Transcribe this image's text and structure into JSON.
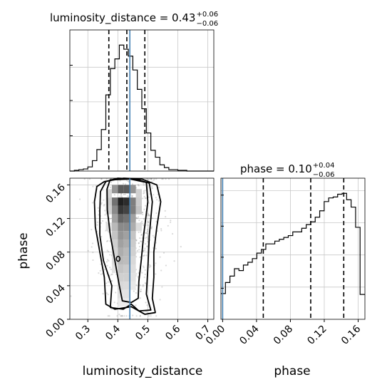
{
  "chart_data": [
    {
      "panel": "luminosity_distance-marginal",
      "type": "histogram",
      "title_prefix": "luminosity_distance = 0.43",
      "title_plus": "+0.06",
      "title_minus": "−0.06",
      "xlim": [
        0.24,
        0.72
      ],
      "truth": 0.44,
      "quantiles": [
        0.37,
        0.43,
        0.49
      ],
      "bin_edges": [
        0.24,
        0.255,
        0.27,
        0.285,
        0.3,
        0.315,
        0.33,
        0.345,
        0.36,
        0.375,
        0.39,
        0.405,
        0.42,
        0.435,
        0.45,
        0.465,
        0.48,
        0.495,
        0.51,
        0.525,
        0.54,
        0.555,
        0.57,
        0.585,
        0.6,
        0.615,
        0.63,
        0.645,
        0.66,
        0.675,
        0.69,
        0.705,
        0.72
      ],
      "counts": [
        0,
        1,
        2,
        3,
        6,
        15,
        31,
        60,
        110,
        148,
        162,
        182,
        176,
        166,
        146,
        118,
        90,
        55,
        30,
        20,
        9,
        5,
        2,
        2,
        1,
        1,
        0,
        0,
        0,
        0,
        0,
        0
      ],
      "grid": true
    },
    {
      "panel": "phase-marginal",
      "type": "histogram",
      "title_prefix": "phase = 0.10",
      "title_plus": "+0.04",
      "title_minus": "−0.06",
      "xlim": [
        -0.002,
        0.168
      ],
      "truth": 0.0,
      "quantiles": [
        0.048,
        0.104,
        0.143
      ],
      "bin_edges": [
        -0.002,
        0.0033,
        0.0086,
        0.0139,
        0.0192,
        0.0245,
        0.0298,
        0.0351,
        0.0404,
        0.0457,
        0.051,
        0.0563,
        0.0616,
        0.0669,
        0.0722,
        0.0775,
        0.0828,
        0.0881,
        0.0934,
        0.0987,
        0.104,
        0.1093,
        0.1146,
        0.1199,
        0.1252,
        0.1305,
        0.1358,
        0.1411,
        0.1464,
        0.1517,
        0.157,
        0.1623,
        0.168
      ],
      "counts": [
        28,
        40,
        47,
        55,
        53,
        59,
        62,
        66,
        72,
        76,
        82,
        82,
        85,
        87,
        89,
        91,
        95,
        95,
        99,
        103,
        106,
        111,
        118,
        128,
        132,
        133,
        136,
        137,
        130,
        122,
        100,
        27
      ],
      "grid": true
    },
    {
      "panel": "joint",
      "type": "2d-histogram-contour",
      "xlabel": "luminosity_distance",
      "ylabel": "phase",
      "xlim": [
        0.24,
        0.72
      ],
      "ylim": [
        0.0,
        0.168
      ],
      "truth_x": 0.44,
      "x_ticks": [
        "0.3",
        "0.4",
        "0.5",
        "0.6",
        "0.7"
      ],
      "y_ticks": [
        "0.00",
        "0.04",
        "0.08",
        "0.12",
        "0.16"
      ],
      "px_ticks": [
        "0.00",
        "0.04",
        "0.08",
        "0.12",
        "0.16"
      ],
      "px_label": "phase",
      "contours": [
        {
          "level": 0.39,
          "points": [
            [
              0.374,
              0.166
            ],
            [
              0.44,
              0.167
            ],
            [
              0.495,
              0.163
            ],
            [
              0.5,
              0.14
            ],
            [
              0.486,
              0.1
            ],
            [
              0.478,
              0.07
            ],
            [
              0.47,
              0.045
            ],
            [
              0.468,
              0.025
            ],
            [
              0.445,
              0.02
            ],
            [
              0.415,
              0.022
            ],
            [
              0.405,
              0.04
            ],
            [
              0.39,
              0.07
            ],
            [
              0.375,
              0.1
            ],
            [
              0.365,
              0.13
            ],
            [
              0.364,
              0.155
            ]
          ]
        },
        {
          "level": 0.86,
          "points": [
            [
              0.36,
              0.164
            ],
            [
              0.4,
              0.168
            ],
            [
              0.46,
              0.167
            ],
            [
              0.505,
              0.162
            ],
            [
              0.515,
              0.14
            ],
            [
              0.505,
              0.1
            ],
            [
              0.5,
              0.06
            ],
            [
              0.495,
              0.03
            ],
            [
              0.51,
              0.011
            ],
            [
              0.47,
              0.01
            ],
            [
              0.445,
              0.018
            ],
            [
              0.418,
              0.012
            ],
            [
              0.375,
              0.014
            ],
            [
              0.38,
              0.04
            ],
            [
              0.352,
              0.07
            ],
            [
              0.34,
              0.1
            ],
            [
              0.34,
              0.13
            ],
            [
              0.342,
              0.152
            ]
          ]
        },
        {
          "level": 0.98,
          "points": [
            [
              0.355,
              0.164
            ],
            [
              0.42,
              0.168
            ],
            [
              0.48,
              0.167
            ],
            [
              0.53,
              0.16
            ],
            [
              0.543,
              0.14
            ],
            [
              0.53,
              0.11
            ],
            [
              0.52,
              0.08
            ],
            [
              0.52,
              0.05
            ],
            [
              0.515,
              0.025
            ],
            [
              0.525,
              0.008
            ],
            [
              0.49,
              0.006
            ],
            [
              0.445,
              0.015
            ],
            [
              0.39,
              0.012
            ],
            [
              0.36,
              0.018
            ],
            [
              0.355,
              0.05
            ],
            [
              0.34,
              0.08
            ],
            [
              0.325,
              0.11
            ],
            [
              0.322,
              0.14
            ],
            [
              0.33,
              0.158
            ]
          ]
        }
      ],
      "inner_mark": [
        0.401,
        0.072
      ],
      "density_cells": [
        {
          "x": 0.41,
          "y": 0.14,
          "v": 0.95
        },
        {
          "x": 0.43,
          "y": 0.14,
          "v": 0.9
        },
        {
          "x": 0.39,
          "y": 0.14,
          "v": 0.6
        },
        {
          "x": 0.45,
          "y": 0.14,
          "v": 0.55
        },
        {
          "x": 0.41,
          "y": 0.13,
          "v": 0.85
        },
        {
          "x": 0.43,
          "y": 0.13,
          "v": 0.8
        },
        {
          "x": 0.39,
          "y": 0.13,
          "v": 0.5
        },
        {
          "x": 0.45,
          "y": 0.13,
          "v": 0.55
        },
        {
          "x": 0.41,
          "y": 0.155,
          "v": 0.7
        },
        {
          "x": 0.43,
          "y": 0.155,
          "v": 0.7
        },
        {
          "x": 0.39,
          "y": 0.155,
          "v": 0.45
        },
        {
          "x": 0.45,
          "y": 0.155,
          "v": 0.45
        },
        {
          "x": 0.41,
          "y": 0.12,
          "v": 0.65
        },
        {
          "x": 0.43,
          "y": 0.12,
          "v": 0.6
        },
        {
          "x": 0.39,
          "y": 0.12,
          "v": 0.4
        },
        {
          "x": 0.45,
          "y": 0.12,
          "v": 0.4
        },
        {
          "x": 0.41,
          "y": 0.11,
          "v": 0.5
        },
        {
          "x": 0.43,
          "y": 0.11,
          "v": 0.5
        },
        {
          "x": 0.39,
          "y": 0.11,
          "v": 0.3
        },
        {
          "x": 0.45,
          "y": 0.11,
          "v": 0.35
        },
        {
          "x": 0.41,
          "y": 0.1,
          "v": 0.45
        },
        {
          "x": 0.43,
          "y": 0.1,
          "v": 0.4
        },
        {
          "x": 0.39,
          "y": 0.1,
          "v": 0.25
        },
        {
          "x": 0.45,
          "y": 0.1,
          "v": 0.25
        },
        {
          "x": 0.41,
          "y": 0.09,
          "v": 0.4
        },
        {
          "x": 0.43,
          "y": 0.09,
          "v": 0.35
        },
        {
          "x": 0.39,
          "y": 0.09,
          "v": 0.2
        },
        {
          "x": 0.45,
          "y": 0.09,
          "v": 0.22
        },
        {
          "x": 0.41,
          "y": 0.08,
          "v": 0.35
        },
        {
          "x": 0.43,
          "y": 0.08,
          "v": 0.3
        },
        {
          "x": 0.39,
          "y": 0.08,
          "v": 0.18
        },
        {
          "x": 0.45,
          "y": 0.08,
          "v": 0.2
        },
        {
          "x": 0.41,
          "y": 0.07,
          "v": 0.3
        },
        {
          "x": 0.43,
          "y": 0.07,
          "v": 0.28
        },
        {
          "x": 0.39,
          "y": 0.07,
          "v": 0.15
        },
        {
          "x": 0.45,
          "y": 0.07,
          "v": 0.16
        },
        {
          "x": 0.41,
          "y": 0.06,
          "v": 0.25
        },
        {
          "x": 0.43,
          "y": 0.06,
          "v": 0.22
        },
        {
          "x": 0.39,
          "y": 0.06,
          "v": 0.12
        },
        {
          "x": 0.45,
          "y": 0.06,
          "v": 0.14
        },
        {
          "x": 0.41,
          "y": 0.05,
          "v": 0.2
        },
        {
          "x": 0.43,
          "y": 0.05,
          "v": 0.2
        },
        {
          "x": 0.45,
          "y": 0.05,
          "v": 0.12
        },
        {
          "x": 0.41,
          "y": 0.04,
          "v": 0.16
        },
        {
          "x": 0.43,
          "y": 0.04,
          "v": 0.15
        },
        {
          "x": 0.45,
          "y": 0.04,
          "v": 0.1
        },
        {
          "x": 0.41,
          "y": 0.03,
          "v": 0.12
        },
        {
          "x": 0.43,
          "y": 0.03,
          "v": 0.12
        },
        {
          "x": 0.41,
          "y": 0.02,
          "v": 0.08
        },
        {
          "x": 0.43,
          "y": 0.02,
          "v": 0.08
        },
        {
          "x": 0.37,
          "y": 0.13,
          "v": 0.2
        },
        {
          "x": 0.47,
          "y": 0.13,
          "v": 0.25
        },
        {
          "x": 0.37,
          "y": 0.14,
          "v": 0.22
        },
        {
          "x": 0.47,
          "y": 0.14,
          "v": 0.22
        },
        {
          "x": 0.37,
          "y": 0.15,
          "v": 0.18
        },
        {
          "x": 0.47,
          "y": 0.15,
          "v": 0.2
        },
        {
          "x": 0.37,
          "y": 0.11,
          "v": 0.14
        },
        {
          "x": 0.47,
          "y": 0.11,
          "v": 0.15
        }
      ],
      "scatter_seed": 12345,
      "scatter_count": 700
    }
  ],
  "colors": {
    "line": "#000000",
    "truth": "#4682b4",
    "grid": "#c8c8c8",
    "scatter": "#555555"
  }
}
